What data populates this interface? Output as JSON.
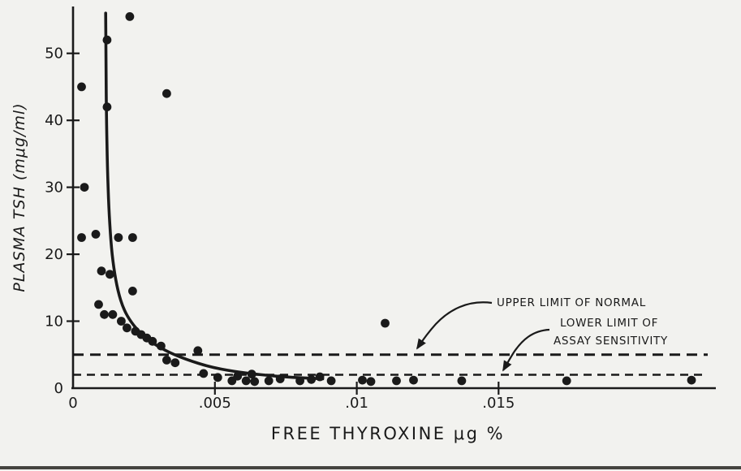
{
  "page": {
    "background": "#f2f2ef",
    "ink": "#1a1a1a",
    "edge_color": "#45443f"
  },
  "chart_data": {
    "type": "scatter",
    "title": "",
    "xlabel": "FREE THYROXINE μg %",
    "ylabel": "PLASMA TSH (mμg/ml)",
    "xlim": [
      0,
      0.0226
    ],
    "ylim": [
      0,
      57
    ],
    "grid": false,
    "legend": "none",
    "xticks": [
      0,
      0.005,
      0.01,
      0.015
    ],
    "xtick_labels": [
      "0",
      ".005",
      ".01",
      ".015"
    ],
    "yticks": [
      0,
      10,
      20,
      30,
      40,
      50
    ],
    "ytick_labels": [
      "0",
      "10",
      "20",
      "30",
      "40",
      "50"
    ],
    "points": [
      [
        0.0003,
        45
      ],
      [
        0.0012,
        52
      ],
      [
        0.002,
        55.5
      ],
      [
        0.0033,
        44
      ],
      [
        0.0012,
        42
      ],
      [
        0.0004,
        30
      ],
      [
        0.0003,
        22.5
      ],
      [
        0.0008,
        23
      ],
      [
        0.0016,
        22.5
      ],
      [
        0.0021,
        22.5
      ],
      [
        0.001,
        17.5
      ],
      [
        0.0013,
        17
      ],
      [
        0.0009,
        12.5
      ],
      [
        0.0011,
        11
      ],
      [
        0.0014,
        11
      ],
      [
        0.0021,
        14.5
      ],
      [
        0.0017,
        10
      ],
      [
        0.0019,
        9
      ],
      [
        0.0022,
        8.5
      ],
      [
        0.0024,
        8
      ],
      [
        0.0026,
        7.5
      ],
      [
        0.0028,
        7
      ],
      [
        0.0031,
        6.3
      ],
      [
        0.0033,
        4.2
      ],
      [
        0.0036,
        3.8
      ],
      [
        0.0044,
        5.6
      ],
      [
        0.0046,
        2.2
      ],
      [
        0.0051,
        1.6
      ],
      [
        0.0056,
        1.1
      ],
      [
        0.0058,
        1.8
      ],
      [
        0.0061,
        1.1
      ],
      [
        0.0063,
        2.1
      ],
      [
        0.0064,
        1.0
      ],
      [
        0.0069,
        1.1
      ],
      [
        0.0073,
        1.4
      ],
      [
        0.008,
        1.1
      ],
      [
        0.0084,
        1.3
      ],
      [
        0.0087,
        1.7
      ],
      [
        0.0091,
        1.1
      ],
      [
        0.0102,
        1.2
      ],
      [
        0.0105,
        1.0
      ],
      [
        0.011,
        9.7
      ],
      [
        0.0114,
        1.1
      ],
      [
        0.012,
        1.2
      ],
      [
        0.0137,
        1.1
      ],
      [
        0.0174,
        1.1
      ],
      [
        0.0218,
        1.2
      ]
    ],
    "fit_curve": [
      [
        0.00115,
        56
      ],
      [
        0.00116,
        48
      ],
      [
        0.00118,
        40
      ],
      [
        0.00121,
        33
      ],
      [
        0.00126,
        27
      ],
      [
        0.00133,
        22
      ],
      [
        0.00143,
        18
      ],
      [
        0.00158,
        14.5
      ],
      [
        0.00178,
        11.8
      ],
      [
        0.00205,
        9.8
      ],
      [
        0.0024,
        8.1
      ],
      [
        0.00285,
        6.6
      ],
      [
        0.0034,
        5.3
      ],
      [
        0.00405,
        4.2
      ],
      [
        0.0048,
        3.2
      ],
      [
        0.00565,
        2.5
      ],
      [
        0.0066,
        2.0
      ],
      [
        0.0077,
        1.6
      ],
      [
        0.0088,
        1.4
      ]
    ],
    "reference_lines": [
      {
        "name": "upper-limit-of-normal",
        "y": 5.0,
        "label": "UPPER LIMIT OF NORMAL",
        "dash": "13 8",
        "width": 3
      },
      {
        "name": "lower-limit-of-assay-sensitivity",
        "y": 2.0,
        "label": "LOWER LIMIT OF ASSAY SENSITIVITY",
        "dash": "10 7",
        "width": 2.4
      }
    ],
    "annotations": [
      {
        "lines": [
          "UPPER LIMIT OF NORMAL"
        ]
      },
      {
        "lines": [
          "LOWER LIMIT OF",
          "ASSAY SENSITIVITY"
        ]
      }
    ]
  }
}
